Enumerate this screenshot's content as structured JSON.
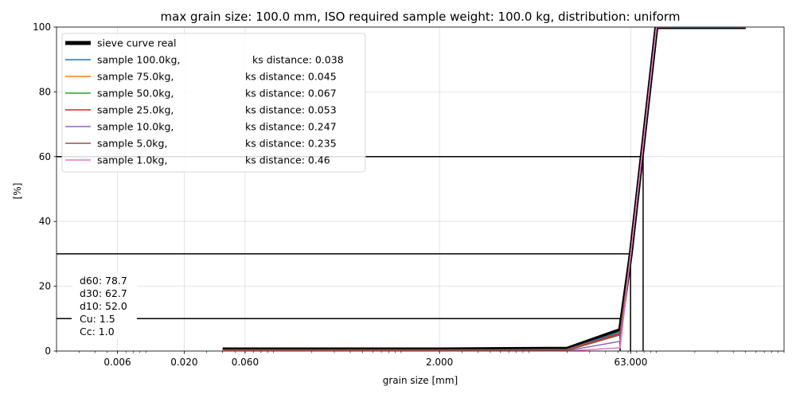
{
  "chart_data": {
    "type": "line",
    "title": "max grain size: 100.0 mm, ISO required sample weight: 100.0 kg, distribution: uniform",
    "xlabel": "grain size [mm]",
    "ylabel": "[%]",
    "xscale": "log",
    "xlim": [
      0.002,
      1000
    ],
    "ylim": [
      0,
      100
    ],
    "grid": true,
    "legend_position": "top-left",
    "x_ticks": [
      {
        "value": 0.006,
        "label": "0.006"
      },
      {
        "value": 0.02,
        "label": "0.020"
      },
      {
        "value": 0.06,
        "label": "0.060"
      },
      {
        "value": 2.0,
        "label": "2.000"
      },
      {
        "value": 63.0,
        "label": "63.000"
      }
    ],
    "y_ticks": [
      0,
      20,
      40,
      60,
      80,
      100
    ],
    "series": [
      {
        "name": "sieve curve real",
        "ks_distance": "",
        "color": "#000000",
        "width": 5,
        "x": [
          0.04,
          0.06,
          2.0,
          20.0,
          52.0,
          63.0,
          100.0,
          500.0
        ],
        "y": [
          0.5,
          0.5,
          0.5,
          0.7,
          6.5,
          30.0,
          100.0,
          100.0
        ]
      },
      {
        "name": "sample 100.0kg,",
        "ks_distance": "ks distance: 0.038",
        "color": "#1f77b4",
        "width": 1.5,
        "x": [
          0.04,
          0.06,
          2.0,
          20.0,
          52.0,
          63.0,
          100.0,
          500.0
        ],
        "y": [
          0.3,
          0.3,
          0.3,
          0.5,
          6.0,
          30.0,
          100.0,
          100.0
        ]
      },
      {
        "name": "sample 75.0kg,",
        "ks_distance": "ks distance: 0.045",
        "color": "#ff7f0e",
        "width": 1.5,
        "x": [
          0.04,
          0.06,
          2.0,
          20.0,
          52.0,
          63.0,
          100.0,
          500.0
        ],
        "y": [
          0.3,
          0.3,
          0.3,
          0.4,
          5.5,
          30.0,
          100.0,
          100.0
        ]
      },
      {
        "name": "sample 50.0kg,",
        "ks_distance": "ks distance: 0.067",
        "color": "#2ca02c",
        "width": 1.5,
        "x": [
          0.04,
          0.06,
          2.0,
          20.0,
          52.0,
          63.0,
          100.0,
          500.0
        ],
        "y": [
          0.2,
          0.2,
          0.2,
          0.3,
          5.2,
          30.0,
          100.0,
          100.0
        ]
      },
      {
        "name": "sample 25.0kg,",
        "ks_distance": "ks distance: 0.053",
        "color": "#d62728",
        "width": 1.5,
        "x": [
          0.04,
          0.06,
          2.0,
          20.0,
          52.0,
          63.0,
          100.0,
          500.0
        ],
        "y": [
          0.2,
          0.2,
          0.2,
          0.3,
          5.5,
          30.0,
          100.0,
          100.0
        ]
      },
      {
        "name": "sample 10.0kg,",
        "ks_distance": "ks distance: 0.247",
        "color": "#9467bd",
        "width": 1.5,
        "x": [
          0.04,
          0.06,
          2.0,
          20.0,
          52.0,
          63.0,
          100.0,
          500.0
        ],
        "y": [
          0.1,
          0.1,
          0.1,
          0.1,
          3.0,
          30.0,
          100.0,
          100.0
        ]
      },
      {
        "name": "sample 5.0kg,",
        "ks_distance": "ks distance: 0.235",
        "color": "#8c564b",
        "width": 1.5,
        "x": [
          0.04,
          0.06,
          2.0,
          20.0,
          52.0,
          63.0,
          100.0,
          500.0
        ],
        "y": [
          0.1,
          0.1,
          0.1,
          0.2,
          5.0,
          30.0,
          100.0,
          100.0
        ]
      },
      {
        "name": "sample 1.0kg,",
        "ks_distance": "ks distance: 0.46",
        "color": "#e377c2",
        "width": 1.5,
        "x": [
          0.04,
          0.06,
          2.0,
          20.0,
          52.0,
          63.0,
          100.0,
          500.0
        ],
        "y": [
          0.0,
          0.0,
          0.0,
          0.0,
          1.0,
          30.0,
          100.0,
          100.0
        ]
      }
    ],
    "reference_lines": [
      {
        "name": "d60",
        "y": 60,
        "x": 78.7
      },
      {
        "name": "d30",
        "y": 30,
        "x": 62.7
      },
      {
        "name": "d10",
        "y": 10,
        "x": 52.0
      }
    ],
    "stats": [
      "d60: 78.7",
      "d30: 62.7",
      "d10: 52.0",
      "Cu: 1.5",
      "Cc: 1.0"
    ]
  }
}
